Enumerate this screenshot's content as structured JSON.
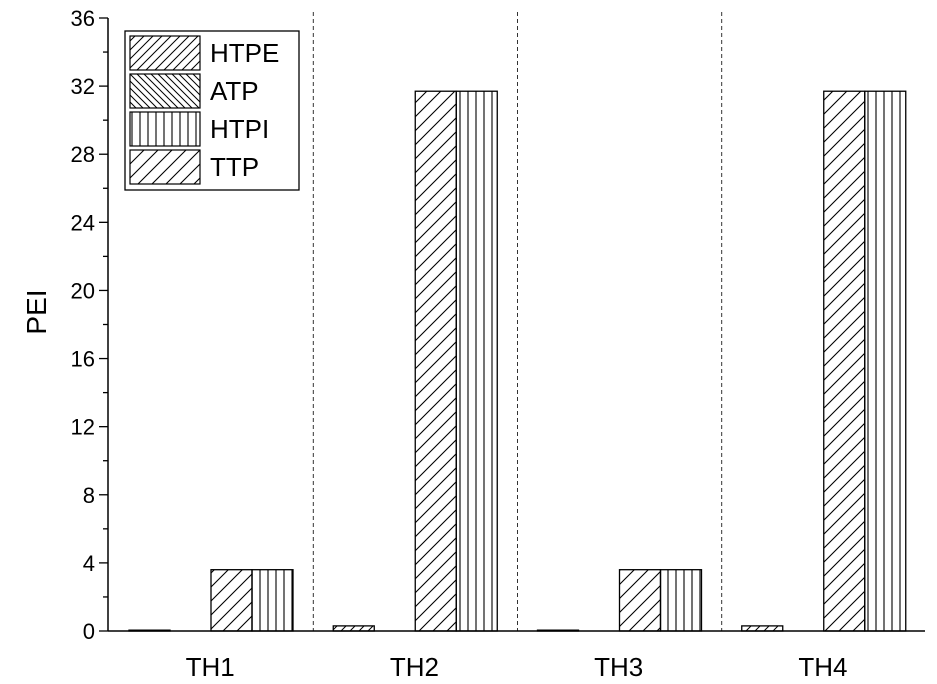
{
  "chart_data": {
    "type": "bar",
    "title": "",
    "xlabel": "",
    "ylabel": "PEI",
    "ylim": [
      0,
      36
    ],
    "yticks": [
      0,
      4,
      8,
      12,
      16,
      20,
      24,
      28,
      32,
      36
    ],
    "yticks_minor_step": 2,
    "categories": [
      "TH1",
      "TH2",
      "TH3",
      "TH4"
    ],
    "grid": false,
    "category_separators": "dashed vertical lines",
    "legend_position": "top-left",
    "series": [
      {
        "name": "HTPE",
        "values": [
          0.05,
          0.3,
          0.05,
          0.3
        ],
        "pattern": "hatch-forward-fine"
      },
      {
        "name": "ATP",
        "values": [
          0,
          0,
          0,
          0
        ],
        "pattern": "hatch-backward"
      },
      {
        "name": "HTPI",
        "values": [
          3.6,
          31.7,
          3.6,
          31.7
        ],
        "pattern": "vertical-lines"
      },
      {
        "name": "TTP",
        "values": [
          3.6,
          31.7,
          3.6,
          31.7
        ],
        "pattern": "hatch-forward"
      }
    ],
    "colors": {
      "stroke": "#000000",
      "fill": "#ffffff"
    }
  }
}
